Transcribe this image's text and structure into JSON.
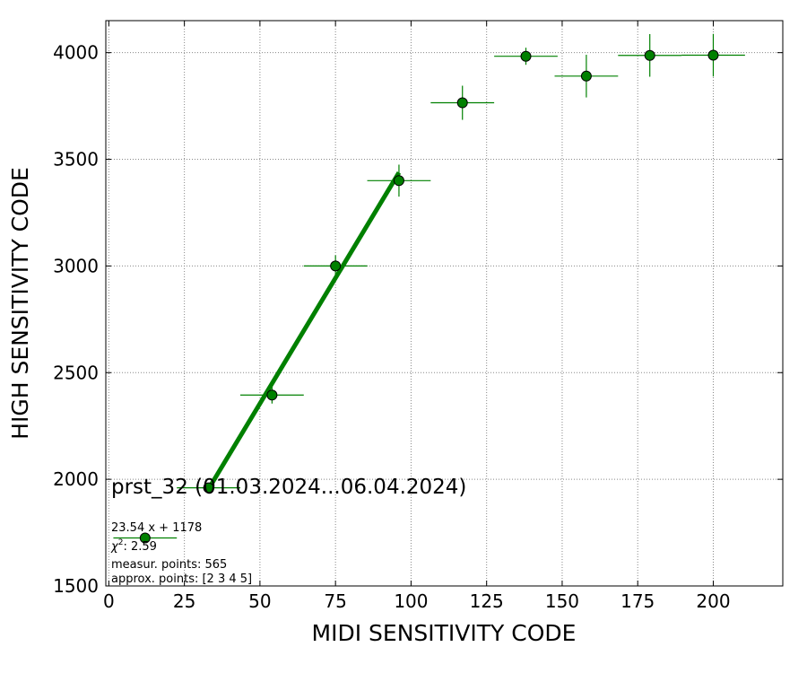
{
  "chart_data": {
    "type": "scatter",
    "title": "prst_32 (01.03.2024...06.04.2024)",
    "xlabel": "MIDI SENSITIVITY CODE",
    "ylabel": "HIGH SENSITIVITY CODE",
    "xlim": [
      -1,
      223
    ],
    "ylim": [
      1500,
      4150
    ],
    "xticks": [
      0,
      25,
      50,
      75,
      100,
      125,
      150,
      175,
      200
    ],
    "yticks": [
      1500,
      2000,
      2500,
      3000,
      3500,
      4000
    ],
    "grid": true,
    "colors": {
      "series": "#008000",
      "grid": "#888888"
    },
    "points": [
      {
        "x": 12,
        "y": 1725,
        "xerr": 10.5,
        "yerr": 15
      },
      {
        "x": 33,
        "y": 1960,
        "xerr": 10.5,
        "yerr": 20
      },
      {
        "x": 54,
        "y": 2395,
        "xerr": 10.5,
        "yerr": 40
      },
      {
        "x": 75,
        "y": 3000,
        "xerr": 10.5,
        "yerr": 50
      },
      {
        "x": 96,
        "y": 3400,
        "xerr": 10.5,
        "yerr": 75
      },
      {
        "x": 117,
        "y": 3765,
        "xerr": 10.5,
        "yerr": 80
      },
      {
        "x": 138,
        "y": 3983,
        "xerr": 10.5,
        "yerr": 40
      },
      {
        "x": 158,
        "y": 3890,
        "xerr": 10.5,
        "yerr": 100
      },
      {
        "x": 179,
        "y": 3987,
        "xerr": 10.5,
        "yerr": 100
      },
      {
        "x": 200,
        "y": 3988,
        "xerr": 10.5,
        "yerr": 100
      }
    ],
    "fit": {
      "slope": 23.54,
      "intercept": 1178,
      "x_range": [
        33,
        96
      ]
    },
    "annotations": {
      "equation": "23.54 x + 1178",
      "chi_symbol": "χ",
      "chi_value": ": 2.59",
      "measured": "measur. points: 565",
      "approx": "approx. points: [2 3 4 5]"
    }
  }
}
